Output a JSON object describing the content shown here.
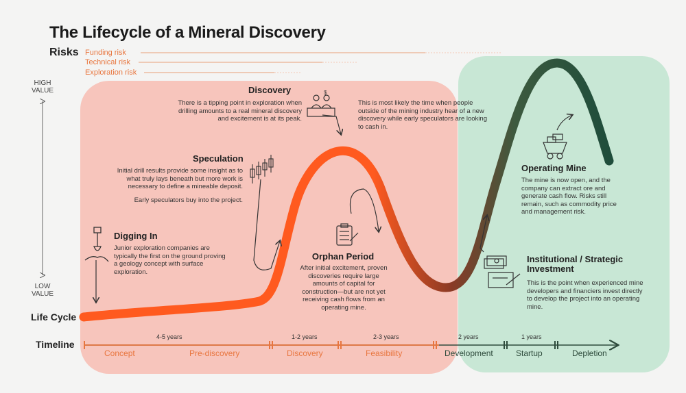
{
  "title": "The Lifecycle of a Mineral Discovery",
  "risks": {
    "label": "Risks",
    "items": [
      "Funding risk",
      "Technical risk",
      "Exploration risk"
    ]
  },
  "value_axis": {
    "high": "HIGH\nVALUE",
    "low": "LOW\nVALUE"
  },
  "stages": {
    "discovery": {
      "title": "Discovery",
      "text": "There is a tipping point in exploration when drilling amounts to a real mineral discovery and excitement is at its peak."
    },
    "discovery_note": "This is most likely the time when people outside of the mining industry hear of a new discovery while early speculators are looking to cash in.",
    "speculation": {
      "title": "Speculation",
      "text": "Initial drill results provide some insight as to what truly lays beneath but more work is necessary to define a mineable deposit.",
      "text2": "Early speculators buy into the project."
    },
    "digging_in": {
      "title": "Digging In",
      "text": "Junior exploration companies are typically the first on the ground proving a geology concept with surface exploration."
    },
    "orphan": {
      "title": "Orphan Period",
      "text": "After initial excitement, proven discoveries require large amounts of capital for construction—but are not yet receiving cash flows from an operating mine."
    },
    "operating": {
      "title": "Operating Mine",
      "text": "The mine is now open, and the company can extract ore and generate cash flow. Risks still remain, such as commodity price and management risk."
    },
    "institutional": {
      "title": "Institutional / Strategic Investment",
      "text": "This is the point when experienced mine developers and financiers invest directly to develop the project into an operating mine."
    }
  },
  "lifecycle_label": "Life Cycle",
  "timeline": {
    "label": "Timeline",
    "durations": [
      "4-5 years",
      "1-2 years",
      "2-3 years",
      "2 years",
      "1 years"
    ],
    "phases": [
      "Concept",
      "Pre-discovery",
      "Discovery",
      "Feasibility",
      "Development",
      "Startup",
      "Depletion"
    ]
  },
  "colors": {
    "red_zone": "#f7c0b6",
    "green_zone": "#c3e6d1",
    "curve_start": "#ff5a1f",
    "curve_end": "#1f4d3b",
    "risk_orange": "#e8763f"
  }
}
